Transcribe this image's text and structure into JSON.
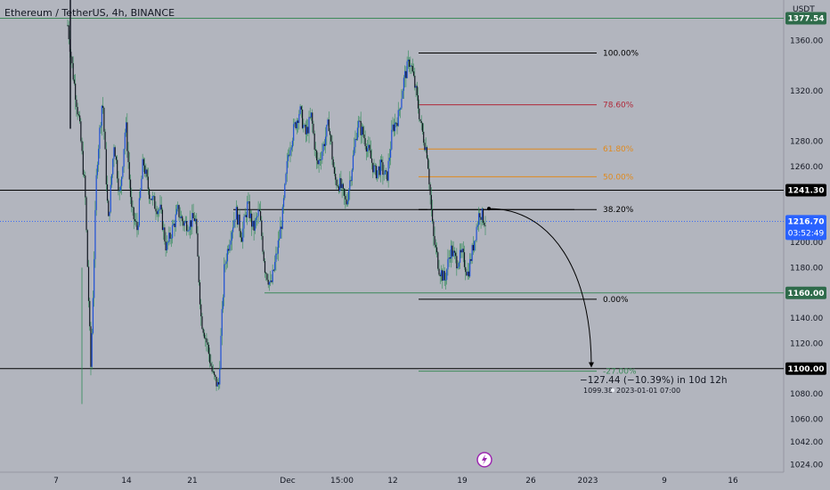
{
  "header": {
    "title": "Ethereum / TetherUS, 4h, BINANCE",
    "currency": "USDT"
  },
  "colors": {
    "bg": "#b2b5be",
    "up": "#1e4fd6",
    "down": "#131722",
    "wick": "#2e8b57",
    "green": "#3d8a5a",
    "red": "#b0293a",
    "orange": "#e08a1e",
    "black": "#000000",
    "blue": "#2962ff"
  },
  "chart_data": {
    "type": "candlestick",
    "ylim": [
      1018,
      1392
    ],
    "y_ticks": [
      "1360.00",
      "1320.00",
      "1280.00",
      "1260.00",
      "1200.00",
      "1180.00",
      "1140.00",
      "1120.00",
      "1080.00",
      "1060.00",
      "1042.00",
      "1024.00"
    ],
    "x_ticks": [
      "7",
      "14",
      "21",
      "Dec",
      "15:00",
      "12",
      "19",
      "26",
      "2023",
      "9",
      "16"
    ],
    "price_labels": [
      {
        "value": "1377.54",
        "style": "green"
      },
      {
        "value": "1241.30",
        "style": "black"
      },
      {
        "value": "1216.70",
        "countdown": "03:52:49",
        "style": "blue"
      },
      {
        "value": "1160.00",
        "style": "green"
      },
      {
        "value": "1100.00",
        "style": "black"
      }
    ],
    "horizontal_levels": [
      {
        "price": 1377.54,
        "color": "green"
      },
      {
        "price": 1241.3,
        "color": "black"
      },
      {
        "price": 1216.7,
        "color": "blue",
        "dotted": true
      },
      {
        "price": 1100.0,
        "color": "black"
      }
    ],
    "fib_levels": [
      {
        "label": "100.00%",
        "price": 1350,
        "color": "black"
      },
      {
        "label": "78.60%",
        "price": 1309,
        "color": "red"
      },
      {
        "label": "61.80%",
        "price": 1274,
        "color": "orange"
      },
      {
        "label": "50.00%",
        "price": 1252,
        "color": "orange"
      },
      {
        "label": "38.20%",
        "price": 1226,
        "color": "black"
      },
      {
        "label": "0.00%",
        "price": 1155,
        "color": "black"
      },
      {
        "label": "-27.00%",
        "price": 1098,
        "color": "green"
      }
    ],
    "support_line": {
      "price": 1160
    },
    "range_line": {
      "price": 1226
    },
    "annotation": {
      "main": "−127.44 (−10.39%) in 10d 12h",
      "sub_price": "1099.38",
      "sub_date": "2023-01-01  07:00",
      "from_price": 1226.8,
      "to_price": 1099.4
    },
    "path": [
      1372,
      1330,
      1295,
      1240,
      1100,
      1260,
      1315,
      1215,
      1280,
      1235,
      1295,
      1225,
      1210,
      1265,
      1240,
      1230,
      1225,
      1195,
      1210,
      1225,
      1215,
      1215,
      1220,
      1140,
      1120,
      1095,
      1085,
      1180,
      1205,
      1225,
      1205,
      1230,
      1210,
      1225,
      1180,
      1165,
      1190,
      1220,
      1270,
      1290,
      1305,
      1285,
      1300,
      1260,
      1275,
      1295,
      1250,
      1245,
      1230,
      1260,
      1295,
      1285,
      1270,
      1255,
      1260,
      1250,
      1290,
      1300,
      1330,
      1345,
      1320,
      1290,
      1270,
      1205,
      1180,
      1170,
      1195,
      1185,
      1190,
      1175,
      1200,
      1225,
      1216
    ]
  }
}
